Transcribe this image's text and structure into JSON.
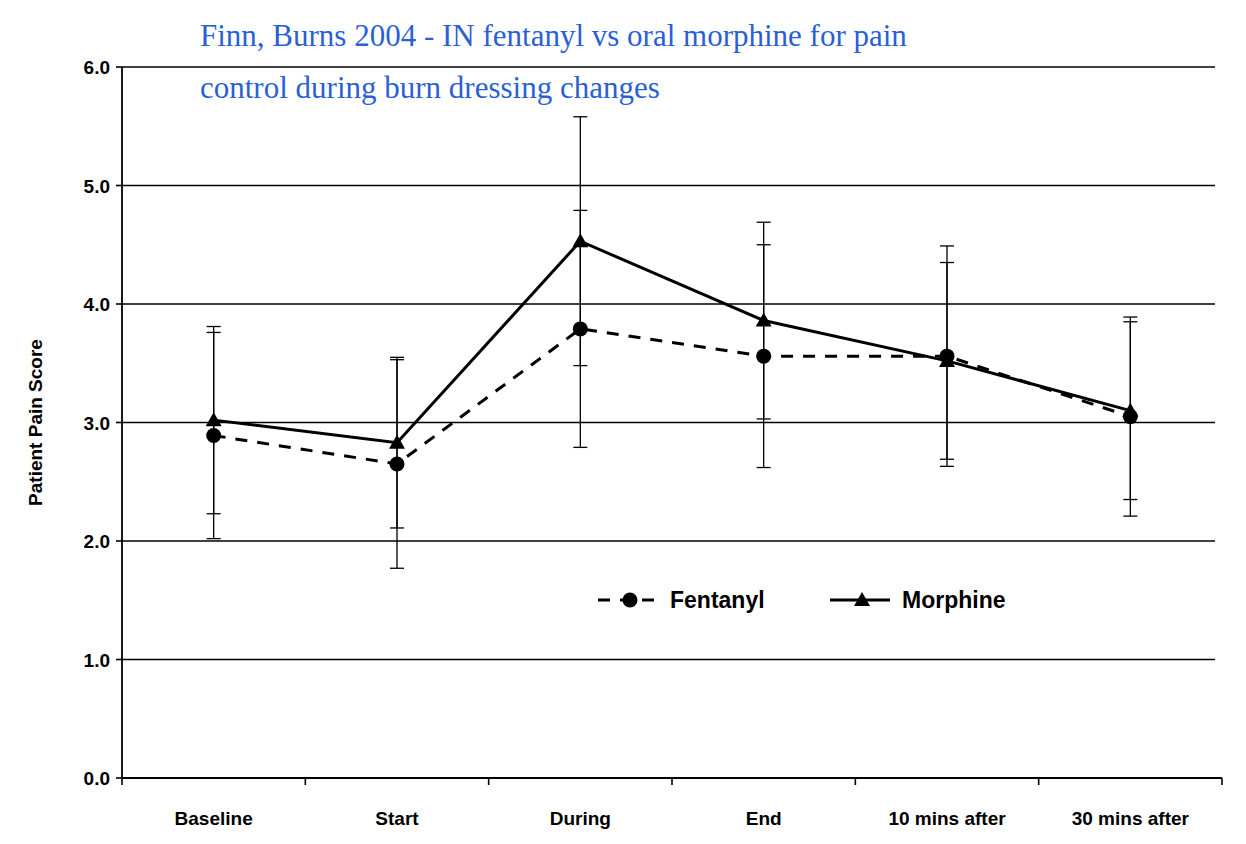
{
  "chart_data": {
    "type": "line",
    "title": "Finn, Burns 2004 - IN fentanyl vs oral morphine for pain control during burn dressing changes",
    "y_label": "Patient Pain Score",
    "categories": [
      "Baseline",
      "Start",
      "During",
      "End",
      "10 mins after",
      "30 mins after"
    ],
    "series": [
      {
        "name": "Fentanyl",
        "color": "#000000",
        "line_style": "dashed",
        "marker": "circle",
        "values": [
          2.89,
          2.65,
          3.79,
          3.56,
          3.56,
          3.05
        ],
        "errors": [
          0.87,
          0.88,
          1.0,
          0.94,
          0.93,
          0.84
        ]
      },
      {
        "name": "Morphine",
        "color": "#000000",
        "line_style": "solid",
        "marker": "triangle",
        "values": [
          3.02,
          2.83,
          4.53,
          3.86,
          3.52,
          3.1
        ],
        "errors": [
          0.79,
          0.72,
          1.05,
          0.83,
          0.83,
          0.75
        ]
      }
    ],
    "ylim": [
      0,
      6
    ],
    "yticks": [
      {
        "value": 0,
        "label": "0.0"
      },
      {
        "value": 1,
        "label": "1.0"
      },
      {
        "value": 2,
        "label": "2.0"
      },
      {
        "value": 3,
        "label": "3.0"
      },
      {
        "value": 4,
        "label": "4.0"
      },
      {
        "value": 5,
        "label": "5.0"
      },
      {
        "value": 6,
        "label": "6.0"
      }
    ],
    "grid": true,
    "legend": "bottom"
  }
}
